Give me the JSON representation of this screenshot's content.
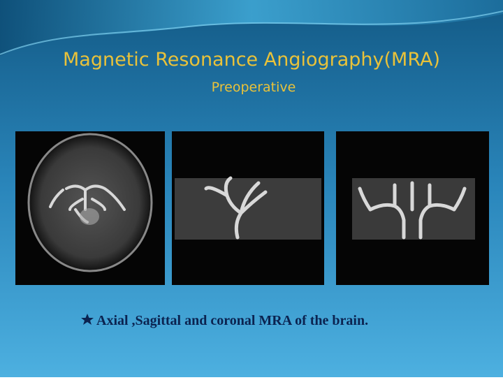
{
  "slide": {
    "title": "Magnetic Resonance Angiography(MRA)",
    "subtitle": "Preoperative",
    "caption": "Axial ,Sagittal and coronal MRA of the brain."
  }
}
